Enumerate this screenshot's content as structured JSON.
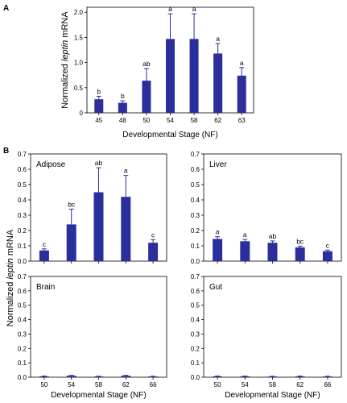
{
  "panel_letters": {
    "a": "A",
    "b": "B"
  },
  "shared_ylabel_prefix": "Normalized ",
  "shared_ylabel_italic": "leptin",
  "shared_ylabel_suffix": " mRNA",
  "colors": {
    "bar": "#2b2f9c",
    "axis": "#000000"
  },
  "chart_data": [
    {
      "id": "A",
      "type": "bar",
      "title": "",
      "xlabel": "Developmental Stage (NF)",
      "ylabel_prefix": "Normalized ",
      "ylabel_italic": "leptin",
      "ylabel_suffix": " mRNA",
      "categories": [
        "45",
        "48",
        "50",
        "54",
        "58",
        "62",
        "63"
      ],
      "values": [
        0.27,
        0.2,
        0.64,
        1.47,
        1.47,
        1.18,
        0.74
      ],
      "errors": [
        0.06,
        0.04,
        0.24,
        0.5,
        0.5,
        0.2,
        0.16
      ],
      "significance": [
        "b",
        "b",
        "ab",
        "a",
        "a",
        "a",
        "a"
      ],
      "ylim": [
        0,
        2.1
      ],
      "yticks": [
        0,
        0.5,
        1.0,
        1.5,
        2.0
      ],
      "ytick_labels": [
        "0",
        "0.5",
        "1.0",
        "1.5",
        "2.0"
      ]
    },
    {
      "id": "Adipose",
      "type": "bar",
      "title": "Adipose",
      "categories": [
        "50",
        "54",
        "58",
        "62",
        "66"
      ],
      "values": [
        0.07,
        0.24,
        0.45,
        0.42,
        0.12
      ],
      "errors": [
        0.01,
        0.1,
        0.16,
        0.14,
        0.02
      ],
      "significance": [
        "c",
        "bc",
        "ab",
        "a",
        "c"
      ],
      "ylim": [
        0,
        0.7
      ],
      "yticks": [
        0,
        0.1,
        0.2,
        0.3,
        0.4,
        0.5,
        0.6,
        0.7
      ],
      "ytick_labels": [
        "0.0",
        "0.1",
        "0.2",
        "0.3",
        "0.4",
        "0.5",
        "0.6",
        "0.7"
      ]
    },
    {
      "id": "Liver",
      "type": "bar",
      "title": "Liver",
      "categories": [
        "50",
        "54",
        "58",
        "62",
        "66"
      ],
      "values": [
        0.145,
        0.13,
        0.12,
        0.09,
        0.065
      ],
      "errors": [
        0.015,
        0.012,
        0.012,
        0.008,
        0.007
      ],
      "significance": [
        "a",
        "a",
        "ab",
        "bc",
        "c"
      ],
      "ylim": [
        0,
        0.7
      ],
      "yticks": [
        0,
        0.1,
        0.2,
        0.3,
        0.4,
        0.5,
        0.6,
        0.7
      ],
      "ytick_labels": [
        "0.0",
        "0.1",
        "0.2",
        "0.3",
        "0.4",
        "0.5",
        "0.6",
        "0.7"
      ]
    },
    {
      "id": "Brain",
      "type": "bar",
      "title": "Brain",
      "xlabel": "Developmental Stage (NF)",
      "categories": [
        "50",
        "54",
        "58",
        "62",
        "66"
      ],
      "values": [
        0.006,
        0.01,
        0.005,
        0.01,
        0.005
      ],
      "errors": [
        0.002,
        0.003,
        0.002,
        0.003,
        0.002
      ],
      "significance": [],
      "ylim": [
        0,
        0.7
      ],
      "yticks": [
        0,
        0.1,
        0.2,
        0.3,
        0.4,
        0.5,
        0.6,
        0.7
      ],
      "ytick_labels": [
        "0.0",
        "0.1",
        "0.2",
        "0.3",
        "0.4",
        "0.5",
        "0.6",
        "0.7"
      ]
    },
    {
      "id": "Gut",
      "type": "bar",
      "title": "Gut",
      "xlabel": "Developmental Stage (NF)",
      "categories": [
        "50",
        "54",
        "58",
        "62",
        "66"
      ],
      "values": [
        0.006,
        0.006,
        0.005,
        0.006,
        0.005
      ],
      "errors": [
        0.002,
        0.002,
        0.002,
        0.002,
        0.002
      ],
      "significance": [],
      "ylim": [
        0,
        0.7
      ],
      "yticks": [
        0,
        0.1,
        0.2,
        0.3,
        0.4,
        0.5,
        0.6,
        0.7
      ],
      "ytick_labels": [
        "0.0",
        "0.1",
        "0.2",
        "0.3",
        "0.4",
        "0.5",
        "0.6",
        "0.7"
      ]
    }
  ]
}
